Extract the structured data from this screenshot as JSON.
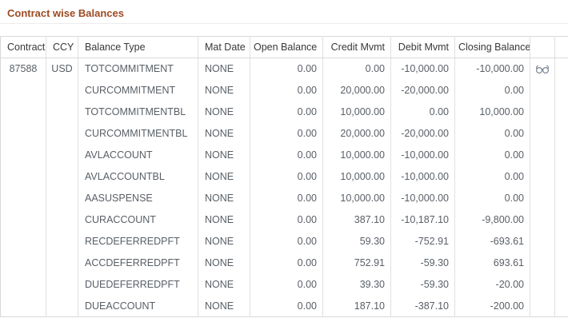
{
  "page": {
    "title": "Contract wise Balances"
  },
  "colors": {
    "title": "#9e4a21",
    "header_text": "#36383b",
    "cell_text": "#595f66",
    "border": "#d8d8d8",
    "icon": "#7a8794"
  },
  "icons": {
    "view_details": "eyeglasses-icon"
  },
  "table": {
    "columns": [
      {
        "key": "contract",
        "label": "Contract",
        "align": "left"
      },
      {
        "key": "ccy",
        "label": "CCY",
        "align": "left"
      },
      {
        "key": "balance_type",
        "label": "Balance Type",
        "align": "left"
      },
      {
        "key": "mat_date",
        "label": "Mat Date",
        "align": "left"
      },
      {
        "key": "open_balance",
        "label": "Open Balance",
        "align": "right"
      },
      {
        "key": "credit_mvmt",
        "label": "Credit Mvmt",
        "align": "right"
      },
      {
        "key": "debit_mvmt",
        "label": "Debit Mvmt",
        "align": "right"
      },
      {
        "key": "closing_balance",
        "label": "Closing Balance",
        "align": "right"
      },
      {
        "key": "actions",
        "label": "",
        "align": "center"
      },
      {
        "key": "spacer",
        "label": "",
        "align": "center"
      }
    ],
    "rows": [
      {
        "contract": "87588",
        "ccy": "USD",
        "balance_type": "TOTCOMMITMENT",
        "mat_date": "NONE",
        "open_balance": "0.00",
        "credit_mvmt": "0.00",
        "debit_mvmt": "-10,000.00",
        "closing_balance": "-10,000.00",
        "has_view_icon": true
      },
      {
        "contract": "",
        "ccy": "",
        "balance_type": "CURCOMMITMENT",
        "mat_date": "NONE",
        "open_balance": "0.00",
        "credit_mvmt": "20,000.00",
        "debit_mvmt": "-20,000.00",
        "closing_balance": "0.00",
        "has_view_icon": false
      },
      {
        "contract": "",
        "ccy": "",
        "balance_type": "TOTCOMMITMENTBL",
        "mat_date": "NONE",
        "open_balance": "0.00",
        "credit_mvmt": "10,000.00",
        "debit_mvmt": "0.00",
        "closing_balance": "10,000.00",
        "has_view_icon": false
      },
      {
        "contract": "",
        "ccy": "",
        "balance_type": "CURCOMMITMENTBL",
        "mat_date": "NONE",
        "open_balance": "0.00",
        "credit_mvmt": "20,000.00",
        "debit_mvmt": "-20,000.00",
        "closing_balance": "0.00",
        "has_view_icon": false
      },
      {
        "contract": "",
        "ccy": "",
        "balance_type": "AVLACCOUNT",
        "mat_date": "NONE",
        "open_balance": "0.00",
        "credit_mvmt": "10,000.00",
        "debit_mvmt": "-10,000.00",
        "closing_balance": "0.00",
        "has_view_icon": false
      },
      {
        "contract": "",
        "ccy": "",
        "balance_type": "AVLACCOUNTBL",
        "mat_date": "NONE",
        "open_balance": "0.00",
        "credit_mvmt": "10,000.00",
        "debit_mvmt": "-10,000.00",
        "closing_balance": "0.00",
        "has_view_icon": false
      },
      {
        "contract": "",
        "ccy": "",
        "balance_type": "AASUSPENSE",
        "mat_date": "NONE",
        "open_balance": "0.00",
        "credit_mvmt": "10,000.00",
        "debit_mvmt": "-10,000.00",
        "closing_balance": "0.00",
        "has_view_icon": false
      },
      {
        "contract": "",
        "ccy": "",
        "balance_type": "CURACCOUNT",
        "mat_date": "NONE",
        "open_balance": "0.00",
        "credit_mvmt": "387.10",
        "debit_mvmt": "-10,187.10",
        "closing_balance": "-9,800.00",
        "has_view_icon": false
      },
      {
        "contract": "",
        "ccy": "",
        "balance_type": "RECDEFERREDPFT",
        "mat_date": "NONE",
        "open_balance": "0.00",
        "credit_mvmt": "59.30",
        "debit_mvmt": "-752.91",
        "closing_balance": "-693.61",
        "has_view_icon": false
      },
      {
        "contract": "",
        "ccy": "",
        "balance_type": "ACCDEFERREDPFT",
        "mat_date": "NONE",
        "open_balance": "0.00",
        "credit_mvmt": "752.91",
        "debit_mvmt": "-59.30",
        "closing_balance": "693.61",
        "has_view_icon": false
      },
      {
        "contract": "",
        "ccy": "",
        "balance_type": "DUEDEFERREDPFT",
        "mat_date": "NONE",
        "open_balance": "0.00",
        "credit_mvmt": "39.30",
        "debit_mvmt": "-59.30",
        "closing_balance": "-20.00",
        "has_view_icon": false
      },
      {
        "contract": "",
        "ccy": "",
        "balance_type": "DUEACCOUNT",
        "mat_date": "NONE",
        "open_balance": "0.00",
        "credit_mvmt": "187.10",
        "debit_mvmt": "-387.10",
        "closing_balance": "-200.00",
        "has_view_icon": false
      }
    ]
  }
}
